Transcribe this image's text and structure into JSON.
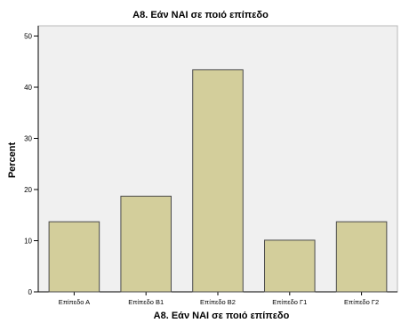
{
  "chart_data": {
    "type": "bar",
    "title": "A8.  Εάν ΝΑΙ σε ποιό επίπεδο",
    "xlabel": "A8.  Εάν ΝΑΙ σε ποιό επίπεδο",
    "ylabel": "Percent",
    "categories": [
      "Επίπεδο Α",
      "Επίπεδο Β1",
      "Επίπεδο Β2",
      "Επίπεδο Γ1",
      "Επίπεδο Γ2"
    ],
    "values": [
      13.7,
      18.7,
      43.4,
      10.1,
      13.7
    ],
    "ylim": [
      0,
      52
    ],
    "yticks": [
      0,
      10,
      20,
      30,
      40,
      50
    ],
    "grid": false,
    "colors": {
      "bar_fill": "#d3ce9b",
      "bar_stroke": "#4a4a4a",
      "plot_bg": "#f0f0f0",
      "axis": "#000000"
    }
  }
}
